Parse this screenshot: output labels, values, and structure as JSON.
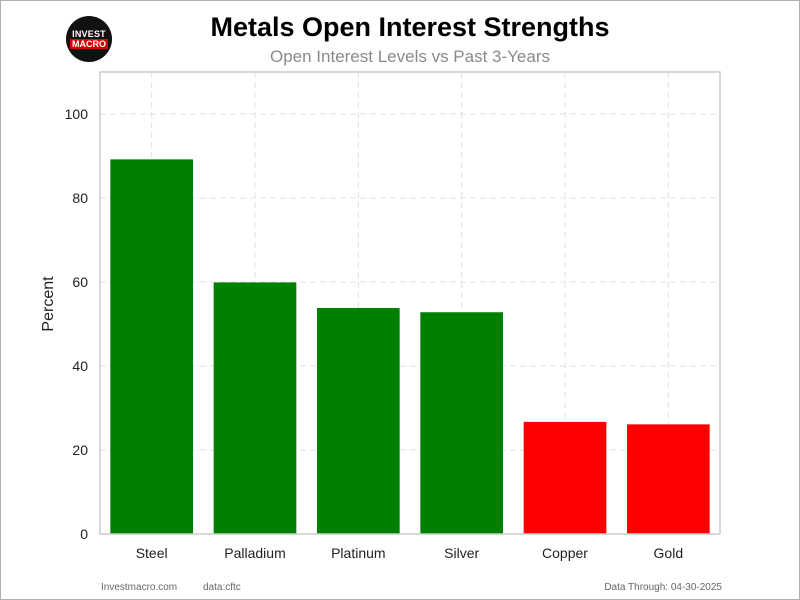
{
  "logo": {
    "line1": "INVEST",
    "line2": "MACRO"
  },
  "header": {
    "title": "Metals Open Interest Strengths",
    "subtitle": "Open Interest Levels vs Past 3-Years"
  },
  "footer": {
    "site": "Investmacro.com",
    "source": "data:cftc",
    "date": "Data Through: 04-30-2025"
  },
  "colors": {
    "positive": "#008000",
    "negative": "#ff0000",
    "grid": "#e0e0e0",
    "axis": "#cccccc"
  },
  "chart_data": {
    "type": "bar",
    "title": "Metals Open Interest Strengths",
    "subtitle": "Open Interest Levels vs Past 3-Years",
    "xlabel": "",
    "ylabel": "Percent",
    "categories": [
      "Steel",
      "Palladium",
      "Platinum",
      "Silver",
      "Copper",
      "Gold"
    ],
    "values": [
      89.2,
      59.9,
      53.8,
      52.8,
      26.7,
      26.1
    ],
    "bar_colors": [
      "#008000",
      "#008000",
      "#008000",
      "#008000",
      "#ff0000",
      "#ff0000"
    ],
    "ylim": [
      0,
      110
    ],
    "yticks": [
      0,
      20,
      40,
      60,
      80,
      100
    ],
    "grid": true,
    "grid_style": "dashed"
  }
}
